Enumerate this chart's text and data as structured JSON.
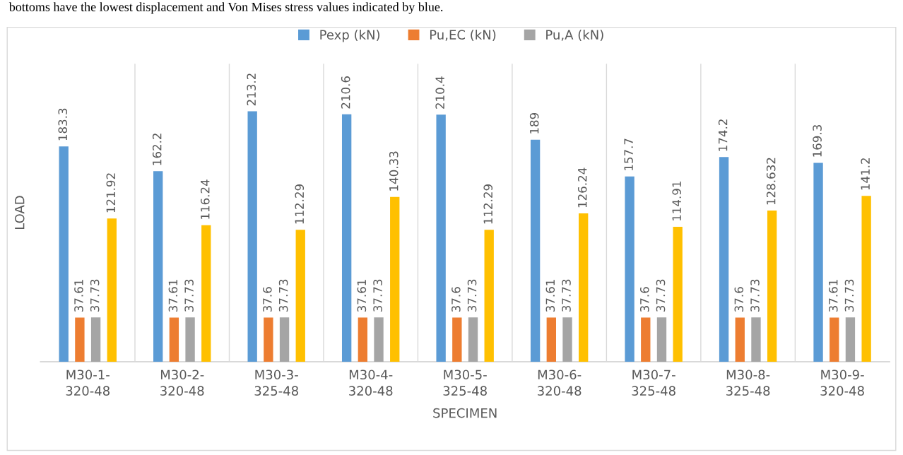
{
  "chart_data": {
    "type": "bar",
    "xlabel": "SPECIMEN",
    "ylabel": "LOAD",
    "annotations": [
      "bottoms have the lowest displacement and Von Mises stress values indicated by blue."
    ],
    "categories": [
      "M30-1-\n320-48",
      "M30-2-\n320-48",
      "M30-3-\n325-48",
      "M30-4-\n320-48",
      "M30-5-\n325-48",
      "M30-6-\n320-48",
      "M30-7-\n325-48",
      "M30-8-\n325-48",
      "M30-9-\n320-48"
    ],
    "series": [
      {
        "name": "Pexp (kN)",
        "color": "#5b9bd5",
        "values": [
          183.3,
          162.2,
          213.2,
          210.6,
          210.4,
          189,
          157.7,
          174.2,
          169.3
        ]
      },
      {
        "name": "Pu,EC (kN)",
        "color": "#ed7d31",
        "values": [
          37.61,
          37.61,
          37.6,
          37.61,
          37.6,
          37.61,
          37.6,
          37.6,
          37.61
        ]
      },
      {
        "name": "Pu,A (kN)",
        "color": "#a5a5a5",
        "values": [
          37.73,
          37.73,
          37.73,
          37.73,
          37.73,
          37.73,
          37.73,
          37.73,
          37.73
        ]
      },
      {
        "color": "#ffc000",
        "values": [
          121.92,
          116.24,
          112.29,
          140.33,
          112.29,
          126.24,
          114.91,
          128.632,
          141.2
        ]
      }
    ],
    "data_labels": true,
    "grid": "x",
    "legend": "top"
  }
}
